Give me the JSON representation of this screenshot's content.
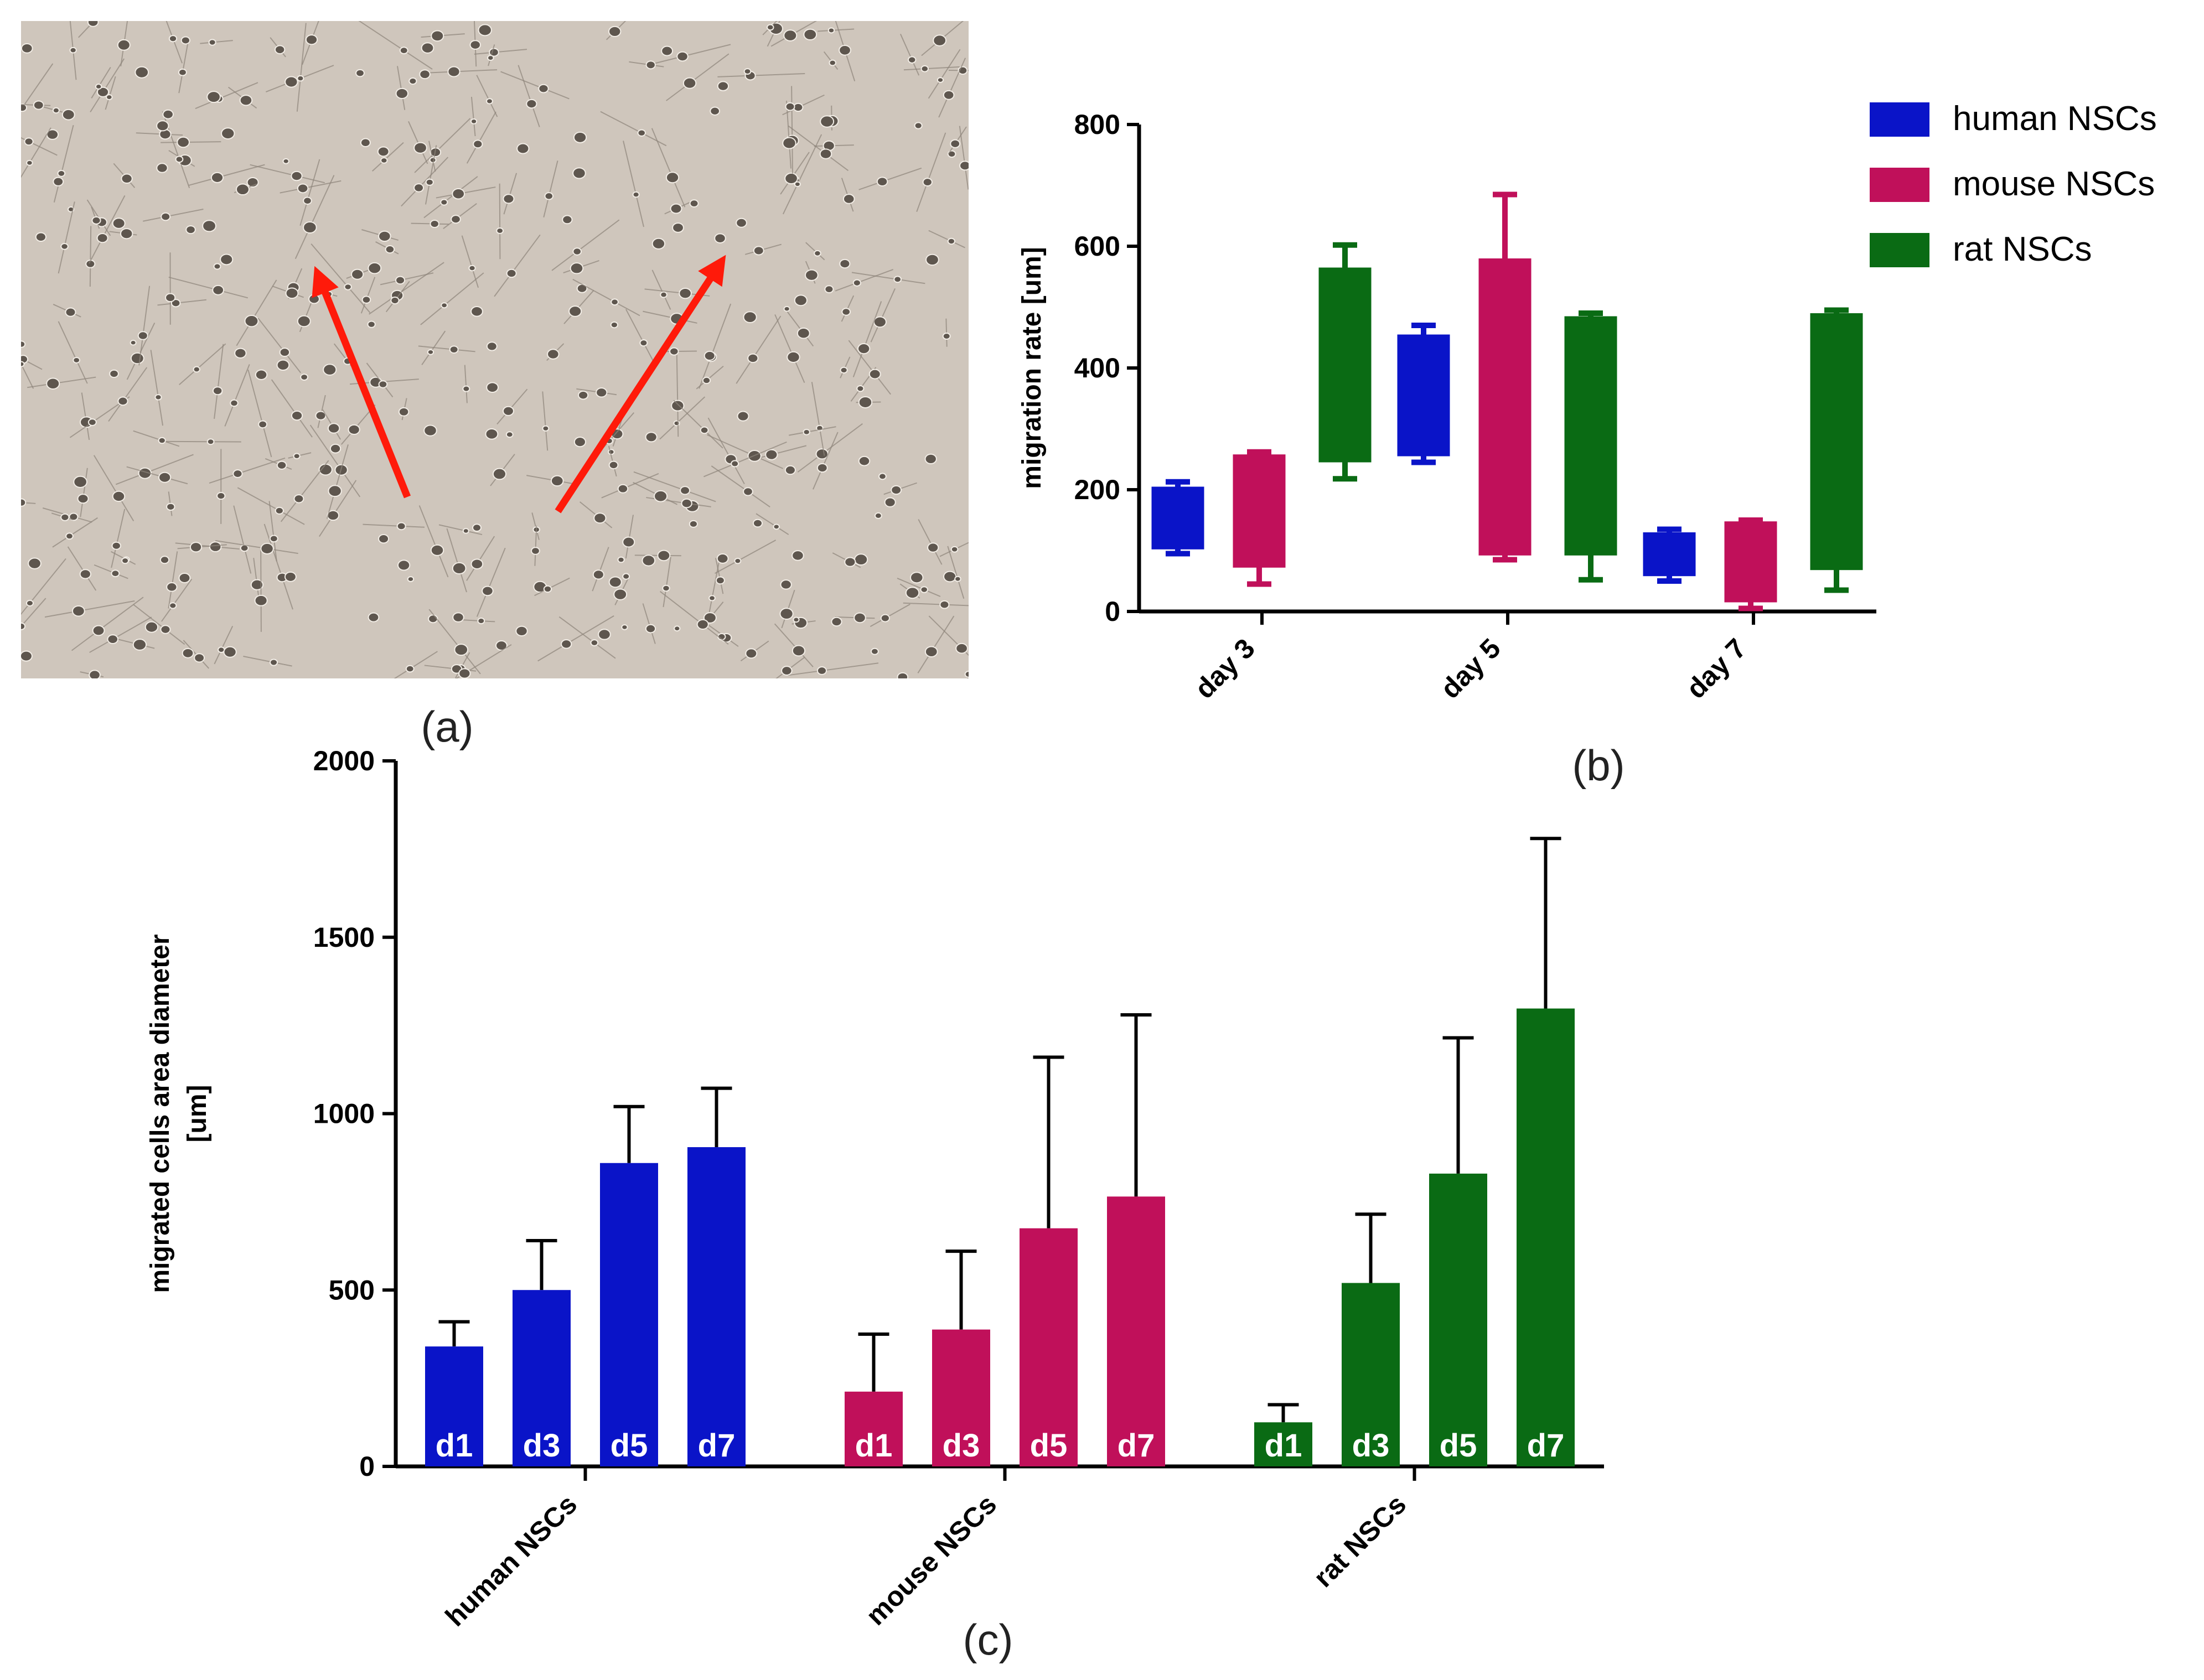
{
  "panels": {
    "a": "(a)",
    "b": "(b)",
    "c": "(c)"
  },
  "colors": {
    "human": "#0A14C8",
    "mouse": "#C0105A",
    "rat": "#0A6B14",
    "arrow": "#FF1A0A",
    "micro_bg": "#CFC6BC"
  },
  "micrograph": {
    "description_icon": "cell-culture-micrograph-icon"
  },
  "chart_data": [
    {
      "id": "b",
      "type": "box",
      "title": "",
      "xlabel": "",
      "ylabel": "migration rate [um]",
      "ylim": [
        0,
        800
      ],
      "yticks": [
        0,
        200,
        400,
        600,
        800
      ],
      "categories": [
        "day 3",
        "day 5",
        "day 7"
      ],
      "legend_position": "top-right",
      "series": [
        {
          "name": "human NSCs",
          "color_key": "human",
          "boxes": [
            {
              "min": 95,
              "q1": 102,
              "q3": 205,
              "max": 213
            },
            {
              "min": 245,
              "q1": 255,
              "q3": 455,
              "max": 470
            },
            {
              "min": 50,
              "q1": 58,
              "q3": 130,
              "max": 135
            }
          ]
        },
        {
          "name": "mouse NSCs",
          "color_key": "mouse",
          "boxes": [
            {
              "min": 45,
              "q1": 72,
              "q3": 258,
              "max": 262
            },
            {
              "min": 85,
              "q1": 92,
              "q3": 580,
              "max": 685
            },
            {
              "min": 5,
              "q1": 15,
              "q3": 148,
              "max": 150
            }
          ]
        },
        {
          "name": "rat NSCs",
          "color_key": "rat",
          "boxes": [
            {
              "min": 218,
              "q1": 245,
              "q3": 565,
              "max": 602
            },
            {
              "min": 52,
              "q1": 92,
              "q3": 485,
              "max": 490
            },
            {
              "min": 35,
              "q1": 68,
              "q3": 490,
              "max": 495
            }
          ]
        }
      ]
    },
    {
      "id": "c",
      "type": "bar",
      "title": "",
      "xlabel": "",
      "ylabel_lines": [
        "migrated cells area diameter",
        "[um]"
      ],
      "ylim": [
        0,
        2000
      ],
      "yticks": [
        0,
        500,
        1000,
        1500,
        2000
      ],
      "groups": [
        {
          "name": "human NSCs",
          "color_key": "human",
          "bars": [
            {
              "label": "d1",
              "value": 340,
              "error": 410
            },
            {
              "label": "d3",
              "value": 500,
              "error": 640
            },
            {
              "label": "d5",
              "value": 860,
              "error": 1020
            },
            {
              "label": "d7",
              "value": 905,
              "error": 1072
            }
          ]
        },
        {
          "name": "mouse NSCs",
          "color_key": "mouse",
          "bars": [
            {
              "label": "d1",
              "value": 212,
              "error": 375
            },
            {
              "label": "d3",
              "value": 388,
              "error": 610
            },
            {
              "label": "d5",
              "value": 675,
              "error": 1160
            },
            {
              "label": "d7",
              "value": 765,
              "error": 1280
            }
          ]
        },
        {
          "name": "rat NSCs",
          "color_key": "rat",
          "bars": [
            {
              "label": "d1",
              "value": 125,
              "error": 175
            },
            {
              "label": "d3",
              "value": 520,
              "error": 715
            },
            {
              "label": "d5",
              "value": 830,
              "error": 1215
            },
            {
              "label": "d7",
              "value": 1298,
              "error": 1780
            }
          ]
        }
      ]
    }
  ]
}
